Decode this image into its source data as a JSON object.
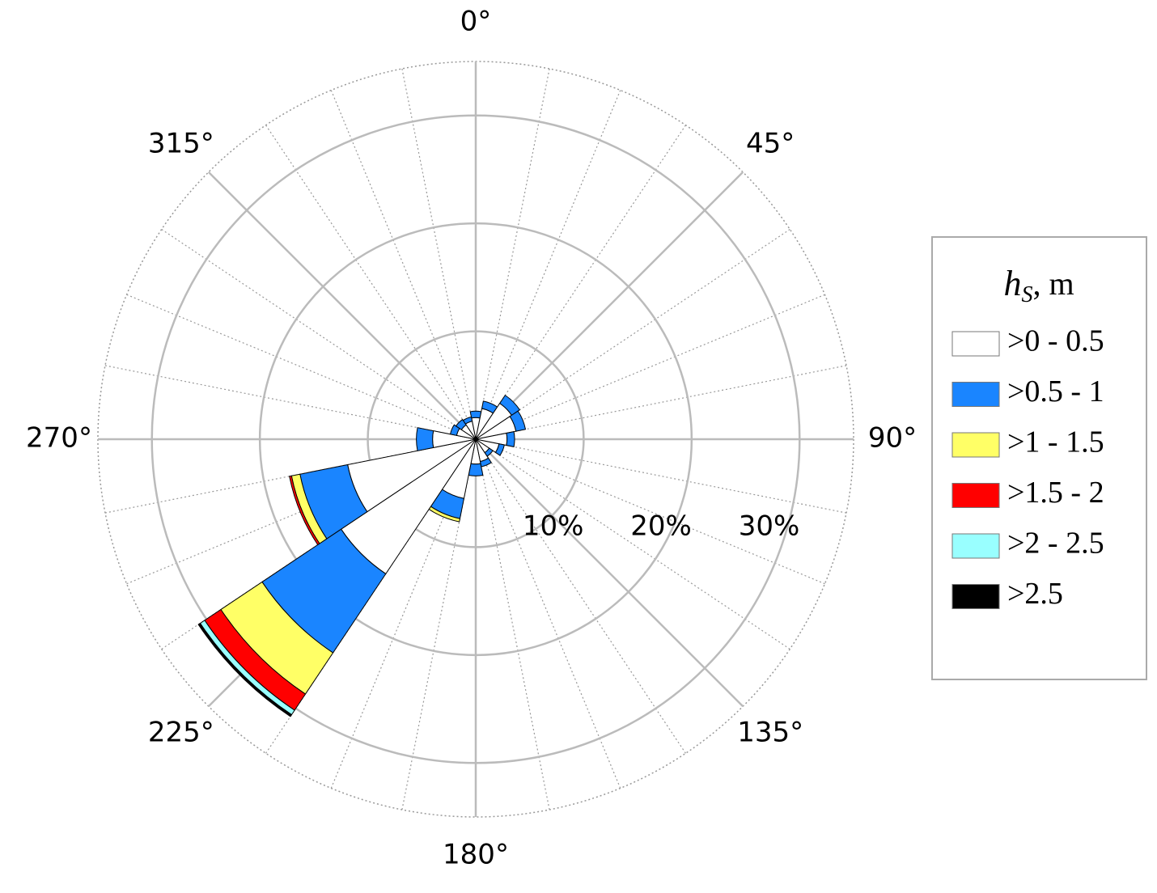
{
  "chart_data": {
    "type": "polar-stacked-bar",
    "legend_title": {
      "symbol": "h",
      "subscript": "S",
      "unit": ", m"
    },
    "x": [
      0,
      22.5,
      45,
      67.5,
      90,
      112.5,
      135,
      157.5,
      180,
      202.5,
      225,
      247.5,
      270,
      292.5,
      315,
      337.5
    ],
    "series": [
      {
        "name": ">0 - 0.5",
        "color": "#ffffff",
        "values": [
          2.0,
          2.9,
          4.0,
          3.8,
          2.9,
          2.2,
          1.5,
          2.1,
          2.3,
          5.6,
          15,
          12.1,
          4.0,
          1.8,
          1.6,
          1.7
        ]
      },
      {
        "name": ">0.5 - 1",
        "color": "#1a85ff",
        "values": [
          0.6,
          0.7,
          0.9,
          0.9,
          0.7,
          0.5,
          0.4,
          0.5,
          1.1,
          1.9,
          8.8,
          4.5,
          1.5,
          0.6,
          0.6,
          0.4
        ]
      },
      {
        "name": ">1 - 1.5",
        "color": "#ffff66",
        "values": [
          0,
          0,
          0,
          0,
          0,
          0,
          0,
          0,
          0,
          0.3,
          4.6,
          0.8,
          0,
          0,
          0,
          0
        ]
      },
      {
        "name": ">1.5 - 2",
        "color": "#ff0000",
        "values": [
          0,
          0,
          0,
          0,
          0,
          0,
          0,
          0,
          0,
          0,
          1.8,
          0.2,
          0,
          0,
          0,
          0
        ]
      },
      {
        "name": ">2 - 2.5",
        "color": "#99ffff",
        "values": [
          0,
          0,
          0,
          0,
          0,
          0,
          0,
          0,
          0,
          0,
          0.5,
          0,
          0,
          0,
          0,
          0
        ]
      },
      {
        "name": ">2.5",
        "color": "#000000",
        "values": [
          0,
          0,
          0,
          0,
          0,
          0,
          0,
          0,
          0,
          0,
          0.2,
          0,
          0,
          0,
          0,
          0
        ]
      }
    ],
    "rlim": [
      0,
      35
    ],
    "rticks": [
      {
        "value": 10,
        "label": "10%"
      },
      {
        "value": 20,
        "label": "20%"
      },
      {
        "value": 30,
        "label": "30%"
      }
    ],
    "thetaticks": [
      {
        "value": 0,
        "label": "0°"
      },
      {
        "value": 45,
        "label": "45°"
      },
      {
        "value": 90,
        "label": "90°"
      },
      {
        "value": 135,
        "label": "135°"
      },
      {
        "value": 180,
        "label": "180°"
      },
      {
        "value": 225,
        "label": "225°"
      },
      {
        "value": 270,
        "label": "270°"
      },
      {
        "value": 315,
        "label": "315°"
      }
    ],
    "grid": true
  }
}
